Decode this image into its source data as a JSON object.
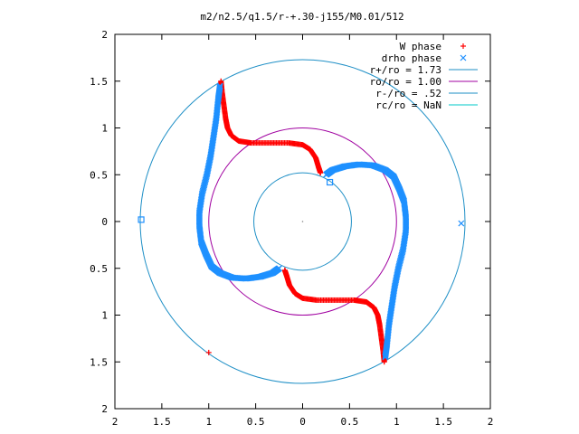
{
  "chart_data": {
    "type": "scatter",
    "title": "m2/n2.5/q1.5/r-+.30-j155/M0.01/512",
    "xlabel": "",
    "ylabel": "",
    "xlim": [
      -2,
      2
    ],
    "ylim": [
      -2,
      2
    ],
    "x_ticks": [
      -2,
      -1.5,
      -1,
      -0.5,
      0,
      0.5,
      1,
      1.5,
      2
    ],
    "y_ticks": [
      -2,
      -1.5,
      -1,
      -0.5,
      0,
      0.5,
      1,
      1.5,
      2
    ],
    "x_tick_labels": [
      "2",
      "1.5",
      "1",
      "0.5",
      "0",
      "0.5",
      "1",
      "1.5",
      "2"
    ],
    "y_tick_labels": [
      "2",
      "1.5",
      "1",
      "0.5",
      "0",
      "0.5",
      "1",
      "1.5",
      "2"
    ],
    "grid": false,
    "legend_position": "top-right",
    "series": [
      {
        "name": "W phase",
        "marker": "plus",
        "color": "#ff0000",
        "arms": [
          [
            [
              0.19,
              0.52
            ],
            [
              0.17,
              0.58
            ],
            [
              0.14,
              0.68
            ],
            [
              0.08,
              0.77
            ],
            [
              0.0,
              0.82
            ],
            [
              -0.15,
              0.84
            ],
            [
              -0.35,
              0.84
            ],
            [
              -0.55,
              0.84
            ],
            [
              -0.68,
              0.86
            ],
            [
              -0.76,
              0.92
            ],
            [
              -0.8,
              1.0
            ],
            [
              -0.82,
              1.1
            ],
            [
              -0.84,
              1.25
            ],
            [
              -0.86,
              1.4
            ],
            [
              -0.87,
              1.5
            ]
          ],
          [
            [
              -0.19,
              -0.52
            ],
            [
              -0.17,
              -0.58
            ],
            [
              -0.14,
              -0.68
            ],
            [
              -0.08,
              -0.77
            ],
            [
              0.0,
              -0.82
            ],
            [
              0.15,
              -0.84
            ],
            [
              0.35,
              -0.84
            ],
            [
              0.55,
              -0.84
            ],
            [
              0.68,
              -0.86
            ],
            [
              0.76,
              -0.92
            ],
            [
              0.8,
              -1.0
            ],
            [
              0.82,
              -1.1
            ],
            [
              0.84,
              -1.25
            ],
            [
              0.86,
              -1.4
            ],
            [
              0.87,
              -1.5
            ]
          ]
        ],
        "isolated": [
          [
            -1.0,
            -1.4
          ],
          [
            0.98,
            0.48
          ]
        ]
      },
      {
        "name": "drho phase",
        "marker": "cross",
        "color": "#1e90ff",
        "arms": [
          [
            [
              0.25,
              0.5
            ],
            [
              0.32,
              0.55
            ],
            [
              0.45,
              0.59
            ],
            [
              0.6,
              0.61
            ],
            [
              0.75,
              0.6
            ],
            [
              0.88,
              0.55
            ],
            [
              0.97,
              0.48
            ],
            [
              1.03,
              0.35
            ],
            [
              1.08,
              0.22
            ],
            [
              1.1,
              0.05
            ],
            [
              1.1,
              -0.1
            ],
            [
              1.07,
              -0.3
            ],
            [
              1.02,
              -0.5
            ],
            [
              0.98,
              -0.7
            ],
            [
              0.95,
              -0.9
            ],
            [
              0.92,
              -1.1
            ],
            [
              0.9,
              -1.3
            ],
            [
              0.88,
              -1.45
            ]
          ],
          [
            [
              -0.25,
              -0.5
            ],
            [
              -0.32,
              -0.55
            ],
            [
              -0.45,
              -0.59
            ],
            [
              -0.6,
              -0.61
            ],
            [
              -0.75,
              -0.6
            ],
            [
              -0.88,
              -0.55
            ],
            [
              -0.97,
              -0.48
            ],
            [
              -1.03,
              -0.35
            ],
            [
              -1.08,
              -0.22
            ],
            [
              -1.1,
              -0.05
            ],
            [
              -1.1,
              0.1
            ],
            [
              -1.07,
              0.3
            ],
            [
              -1.02,
              0.5
            ],
            [
              -0.98,
              0.7
            ],
            [
              -0.95,
              0.9
            ],
            [
              -0.92,
              1.1
            ],
            [
              -0.9,
              1.3
            ],
            [
              -0.88,
              1.45
            ]
          ]
        ],
        "isolated": [
          [
            1.69,
            -0.02
          ]
        ],
        "square_markers": [
          [
            -1.72,
            0.02
          ],
          [
            0.29,
            0.42
          ]
        ]
      }
    ],
    "circles": [
      {
        "name": "r+/ro = 1.73",
        "radius": 1.73,
        "color": "#1e8fc6"
      },
      {
        "name": "ro/ro = 1.00",
        "radius": 1.0,
        "color": "#a000a0"
      },
      {
        "name": "r-/ro = .52",
        "radius": 0.52,
        "color": "#1e8fc6"
      },
      {
        "name": "rc/ro = NaN",
        "radius": null,
        "color": "#00c8c8"
      }
    ]
  }
}
